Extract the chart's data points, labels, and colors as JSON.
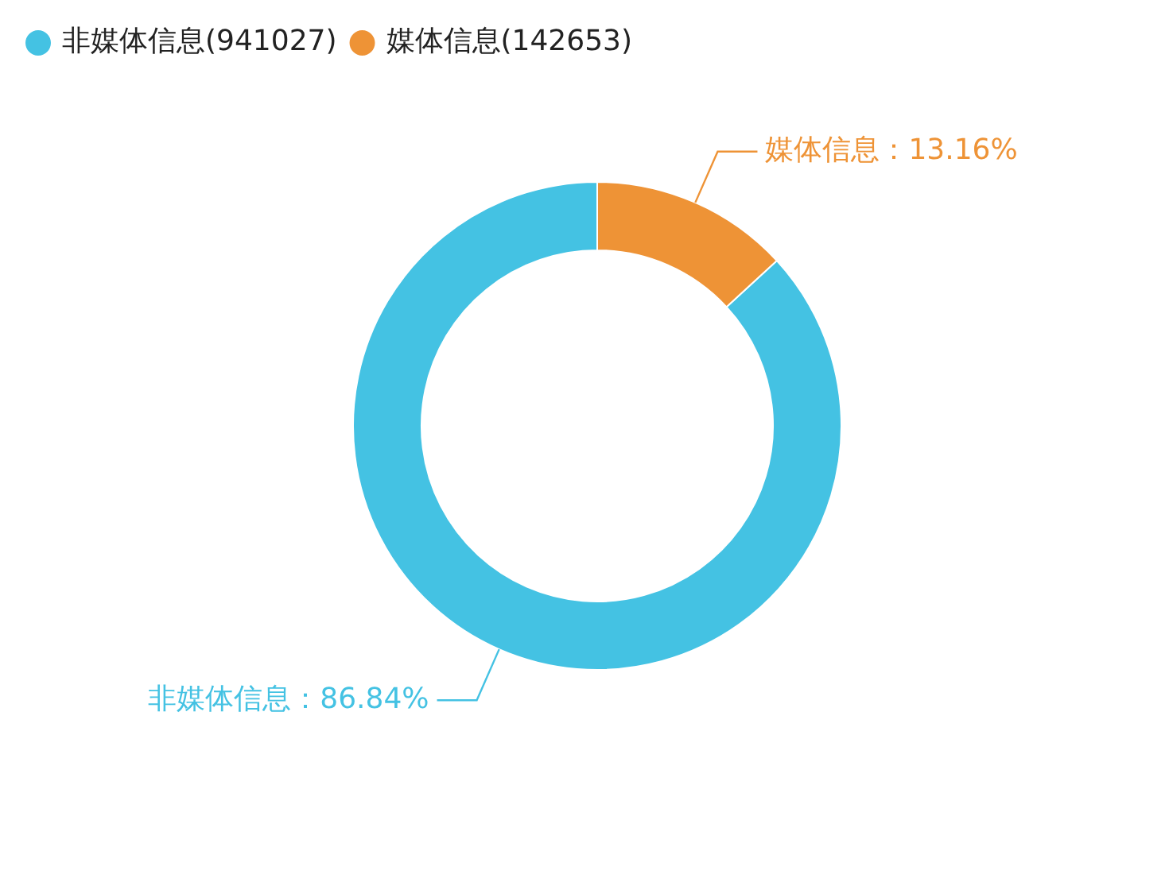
{
  "chart_data": {
    "type": "donut",
    "categories": [
      "非媒体信息(941027)",
      "媒体信息(142653)"
    ],
    "values": [
      86.84,
      13.16
    ],
    "colors": [
      "#44c2e3",
      "#ee9336"
    ],
    "value_labels": [
      "非媒体信息：86.84%",
      "媒体信息：13.16%"
    ],
    "legend": "top left"
  }
}
